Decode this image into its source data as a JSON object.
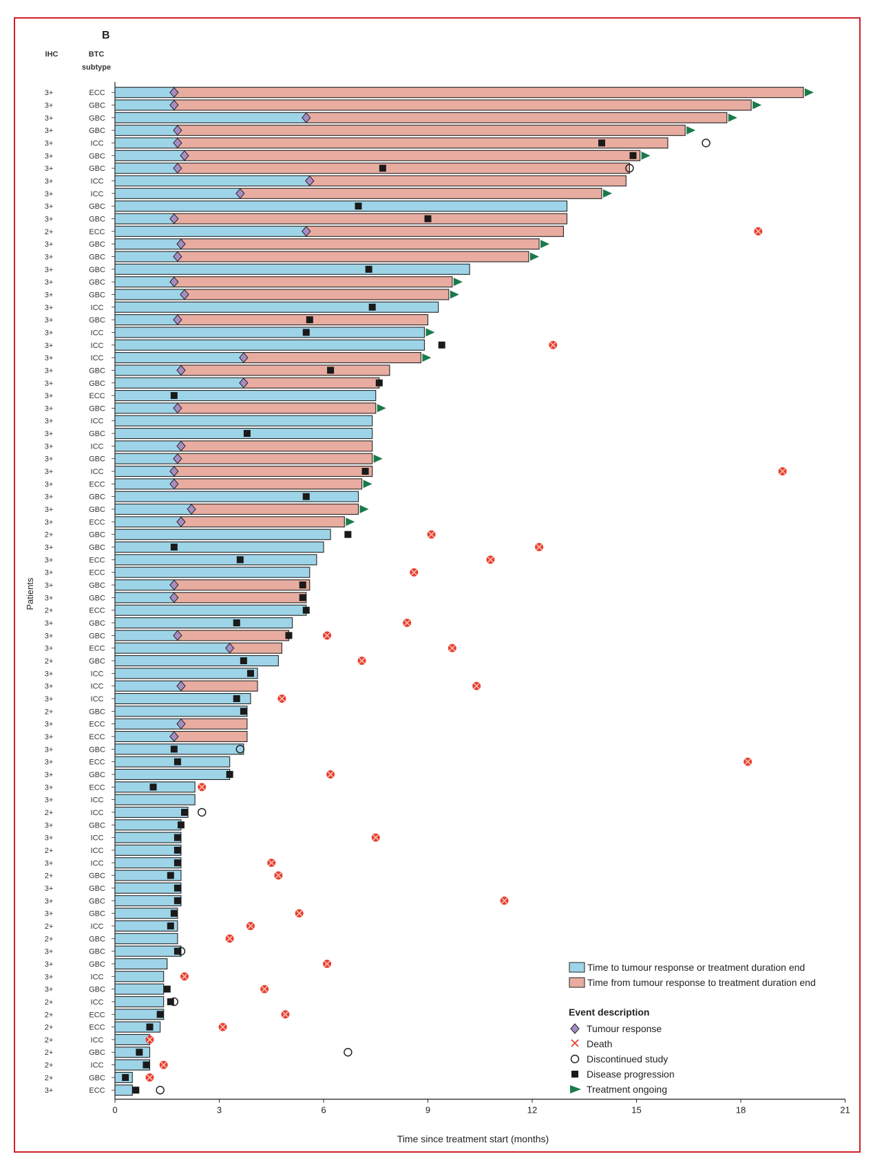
{
  "panel_label": "B",
  "col_ihc": "IHC",
  "col_btc_line1": "BTC",
  "col_btc_line2": "subtype",
  "ylabel": "Patients",
  "xlabel": "Time since treatment start (months)",
  "x_ticks": [
    "0",
    "3",
    "6",
    "9",
    "12",
    "15",
    "18",
    "21"
  ],
  "legend": {
    "bar1": "Time to tumour response or treatment duration end",
    "bar2": "Time from tumour response to treatment duration end",
    "event_title": "Event description",
    "response": "Tumour response",
    "death": "Death",
    "discontinued": "Discontinued study",
    "progression": "Disease progression",
    "ongoing": "Treatment ongoing"
  },
  "colors": {
    "bar_before_response": "#9ed4e8",
    "bar_after_response": "#e8aca0",
    "response_marker": "#a78dc3",
    "death_marker": "#e8412f",
    "progression_marker": "#1a1a1a",
    "ongoing_marker": "#1b7a4a",
    "frame": "#d0202a"
  },
  "chart_data": {
    "type": "swimmer",
    "xlim": [
      0,
      21
    ],
    "xlabel": "Time since treatment start (months)",
    "ylabel": "Patients",
    "patients": [
      {
        "ihc": "3+",
        "btc": "ECC",
        "end": 19.8,
        "resp": 1.7,
        "ongoing": true
      },
      {
        "ihc": "3+",
        "btc": "GBC",
        "end": 18.3,
        "resp": 1.7,
        "ongoing": true
      },
      {
        "ihc": "3+",
        "btc": "GBC",
        "end": 17.6,
        "resp": 5.5,
        "ongoing": true
      },
      {
        "ihc": "3+",
        "btc": "GBC",
        "end": 16.4,
        "resp": 1.8,
        "ongoing": true
      },
      {
        "ihc": "3+",
        "btc": "ICC",
        "end": 15.9,
        "resp": 1.8,
        "prog": 14.0,
        "disc": 17.0
      },
      {
        "ihc": "3+",
        "btc": "GBC",
        "end": 15.1,
        "resp": 2.0,
        "prog": 14.9,
        "ongoing": true
      },
      {
        "ihc": "3+",
        "btc": "GBC",
        "end": 14.8,
        "resp": 1.8,
        "prog": 7.7,
        "disc": 14.8
      },
      {
        "ihc": "3+",
        "btc": "ICC",
        "end": 14.7,
        "resp": 5.6
      },
      {
        "ihc": "3+",
        "btc": "ICC",
        "end": 14.0,
        "resp": 3.6,
        "ongoing": true
      },
      {
        "ihc": "3+",
        "btc": "GBC",
        "end": 13.0,
        "prog": 7.0
      },
      {
        "ihc": "3+",
        "btc": "GBC",
        "end": 13.0,
        "resp": 1.7,
        "prog": 9.0
      },
      {
        "ihc": "2+",
        "btc": "ECC",
        "end": 12.9,
        "resp": 5.5,
        "death": 18.5
      },
      {
        "ihc": "3+",
        "btc": "GBC",
        "end": 12.2,
        "resp": 1.9,
        "ongoing": true
      },
      {
        "ihc": "3+",
        "btc": "GBC",
        "end": 11.9,
        "resp": 1.8,
        "ongoing": true
      },
      {
        "ihc": "3+",
        "btc": "GBC",
        "end": 10.2,
        "prog": 7.3
      },
      {
        "ihc": "3+",
        "btc": "GBC",
        "end": 9.7,
        "resp": 1.7,
        "ongoing": true
      },
      {
        "ihc": "3+",
        "btc": "GBC",
        "end": 9.6,
        "resp": 2.0,
        "ongoing": true
      },
      {
        "ihc": "3+",
        "btc": "ICC",
        "end": 9.3,
        "prog": 7.4
      },
      {
        "ihc": "3+",
        "btc": "GBC",
        "end": 9.0,
        "resp": 1.8,
        "prog": 5.6
      },
      {
        "ihc": "3+",
        "btc": "ICC",
        "end": 8.9,
        "prog": 5.5,
        "ongoing": true
      },
      {
        "ihc": "3+",
        "btc": "ICC",
        "end": 8.9,
        "prog": 9.4,
        "death": 12.6
      },
      {
        "ihc": "3+",
        "btc": "ICC",
        "end": 8.8,
        "resp": 3.7,
        "ongoing": true
      },
      {
        "ihc": "3+",
        "btc": "GBC",
        "end": 7.9,
        "resp": 1.9,
        "prog": 6.2
      },
      {
        "ihc": "3+",
        "btc": "GBC",
        "end": 7.6,
        "resp": 3.7,
        "prog": 7.6
      },
      {
        "ihc": "3+",
        "btc": "ECC",
        "end": 7.5,
        "prog": 1.7
      },
      {
        "ihc": "3+",
        "btc": "GBC",
        "end": 7.5,
        "resp": 1.8,
        "ongoing": true
      },
      {
        "ihc": "3+",
        "btc": "ICC",
        "end": 7.4
      },
      {
        "ihc": "3+",
        "btc": "GBC",
        "end": 7.4,
        "prog": 3.8
      },
      {
        "ihc": "3+",
        "btc": "ICC",
        "end": 7.4,
        "resp": 1.9
      },
      {
        "ihc": "3+",
        "btc": "GBC",
        "end": 7.4,
        "resp": 1.8,
        "ongoing": true
      },
      {
        "ihc": "3+",
        "btc": "ICC",
        "end": 7.4,
        "resp": 1.7,
        "prog": 7.2,
        "death": 19.2
      },
      {
        "ihc": "3+",
        "btc": "ECC",
        "end": 7.1,
        "resp": 1.7,
        "ongoing": true
      },
      {
        "ihc": "3+",
        "btc": "GBC",
        "end": 7.0,
        "prog": 5.5
      },
      {
        "ihc": "3+",
        "btc": "GBC",
        "end": 7.0,
        "resp": 2.2,
        "ongoing": true
      },
      {
        "ihc": "3+",
        "btc": "ECC",
        "end": 6.6,
        "resp": 1.9,
        "ongoing": true
      },
      {
        "ihc": "2+",
        "btc": "GBC",
        "end": 6.2,
        "prog": 6.7,
        "death": 9.1
      },
      {
        "ihc": "3+",
        "btc": "GBC",
        "end": 6.0,
        "prog": 1.7,
        "death": 12.2
      },
      {
        "ihc": "3+",
        "btc": "ECC",
        "end": 5.8,
        "prog": 3.6,
        "death": 10.8
      },
      {
        "ihc": "3+",
        "btc": "ECC",
        "end": 5.6,
        "death": 8.6
      },
      {
        "ihc": "3+",
        "btc": "GBC",
        "end": 5.6,
        "resp": 1.7,
        "prog": 5.4
      },
      {
        "ihc": "3+",
        "btc": "GBC",
        "end": 5.5,
        "resp": 1.7,
        "prog": 5.4
      },
      {
        "ihc": "2+",
        "btc": "ECC",
        "end": 5.5,
        "prog": 5.5
      },
      {
        "ihc": "3+",
        "btc": "GBC",
        "end": 5.1,
        "prog": 3.5,
        "death": 8.4
      },
      {
        "ihc": "3+",
        "btc": "GBC",
        "end": 5.0,
        "resp": 1.8,
        "prog": 5.0,
        "death": 6.1
      },
      {
        "ihc": "3+",
        "btc": "ECC",
        "end": 4.8,
        "resp": 3.3,
        "death": 9.7
      },
      {
        "ihc": "2+",
        "btc": "GBC",
        "end": 4.7,
        "prog": 3.7,
        "death": 7.1
      },
      {
        "ihc": "3+",
        "btc": "ICC",
        "end": 4.1,
        "prog": 3.9
      },
      {
        "ihc": "3+",
        "btc": "ICC",
        "end": 4.1,
        "resp": 1.9,
        "death": 10.4
      },
      {
        "ihc": "3+",
        "btc": "ICC",
        "end": 3.9,
        "prog": 3.5,
        "death": 4.8
      },
      {
        "ihc": "2+",
        "btc": "GBC",
        "end": 3.8,
        "prog": 3.7
      },
      {
        "ihc": "3+",
        "btc": "ECC",
        "end": 3.8,
        "resp": 1.9
      },
      {
        "ihc": "3+",
        "btc": "ECC",
        "end": 3.8,
        "resp": 1.7
      },
      {
        "ihc": "3+",
        "btc": "GBC",
        "end": 3.7,
        "prog": 1.7,
        "disc": 3.6
      },
      {
        "ihc": "3+",
        "btc": "ECC",
        "end": 3.3,
        "prog": 1.8,
        "death": 18.2
      },
      {
        "ihc": "3+",
        "btc": "GBC",
        "end": 3.3,
        "prog": 3.3,
        "death": 6.2
      },
      {
        "ihc": "3+",
        "btc": "ECC",
        "end": 2.3,
        "prog": 1.1,
        "death": 2.5
      },
      {
        "ihc": "3+",
        "btc": "ICC",
        "end": 2.3
      },
      {
        "ihc": "2+",
        "btc": "ICC",
        "end": 2.1,
        "prog": 2.0,
        "disc": 2.5
      },
      {
        "ihc": "3+",
        "btc": "GBC",
        "end": 1.9,
        "prog": 1.9
      },
      {
        "ihc": "3+",
        "btc": "ICC",
        "end": 1.9,
        "prog": 1.8,
        "death": 7.5
      },
      {
        "ihc": "2+",
        "btc": "ICC",
        "end": 1.9,
        "prog": 1.8
      },
      {
        "ihc": "3+",
        "btc": "ICC",
        "end": 1.9,
        "prog": 1.8,
        "death": 4.5
      },
      {
        "ihc": "2+",
        "btc": "GBC",
        "end": 1.9,
        "prog": 1.6,
        "death": 4.7
      },
      {
        "ihc": "3+",
        "btc": "GBC",
        "end": 1.9,
        "prog": 1.8
      },
      {
        "ihc": "3+",
        "btc": "GBC",
        "end": 1.9,
        "prog": 1.8,
        "death": 11.2
      },
      {
        "ihc": "3+",
        "btc": "GBC",
        "end": 1.8,
        "prog": 1.7,
        "death": 5.3
      },
      {
        "ihc": "2+",
        "btc": "ICC",
        "end": 1.8,
        "prog": 1.6,
        "death": 3.9
      },
      {
        "ihc": "2+",
        "btc": "GBC",
        "end": 1.8,
        "death": 3.3
      },
      {
        "ihc": "3+",
        "btc": "GBC",
        "end": 1.9,
        "prog": 1.8,
        "disc": 1.9
      },
      {
        "ihc": "3+",
        "btc": "GBC",
        "end": 1.5,
        "death": 6.1
      },
      {
        "ihc": "3+",
        "btc": "ICC",
        "end": 1.4,
        "death": 2.0
      },
      {
        "ihc": "3+",
        "btc": "GBC",
        "end": 1.4,
        "prog": 1.5,
        "death": 4.3
      },
      {
        "ihc": "2+",
        "btc": "ICC",
        "end": 1.4,
        "prog": 1.6,
        "disc": 1.7
      },
      {
        "ihc": "2+",
        "btc": "ECC",
        "end": 1.4,
        "prog": 1.3,
        "death": 4.9
      },
      {
        "ihc": "2+",
        "btc": "ECC",
        "end": 1.3,
        "prog": 1.0,
        "death": 3.1
      },
      {
        "ihc": "2+",
        "btc": "ICC",
        "end": 1.0,
        "death": 1.0
      },
      {
        "ihc": "2+",
        "btc": "GBC",
        "end": 1.0,
        "prog": 0.7,
        "disc": 6.7
      },
      {
        "ihc": "2+",
        "btc": "ICC",
        "end": 1.0,
        "prog": 0.9,
        "death": 1.4
      },
      {
        "ihc": "2+",
        "btc": "GBC",
        "end": 0.5,
        "prog": 0.3,
        "death": 1.0
      },
      {
        "ihc": "3+",
        "btc": "ECC",
        "end": 0.5,
        "prog": 0.6,
        "disc": 1.3
      }
    ]
  }
}
